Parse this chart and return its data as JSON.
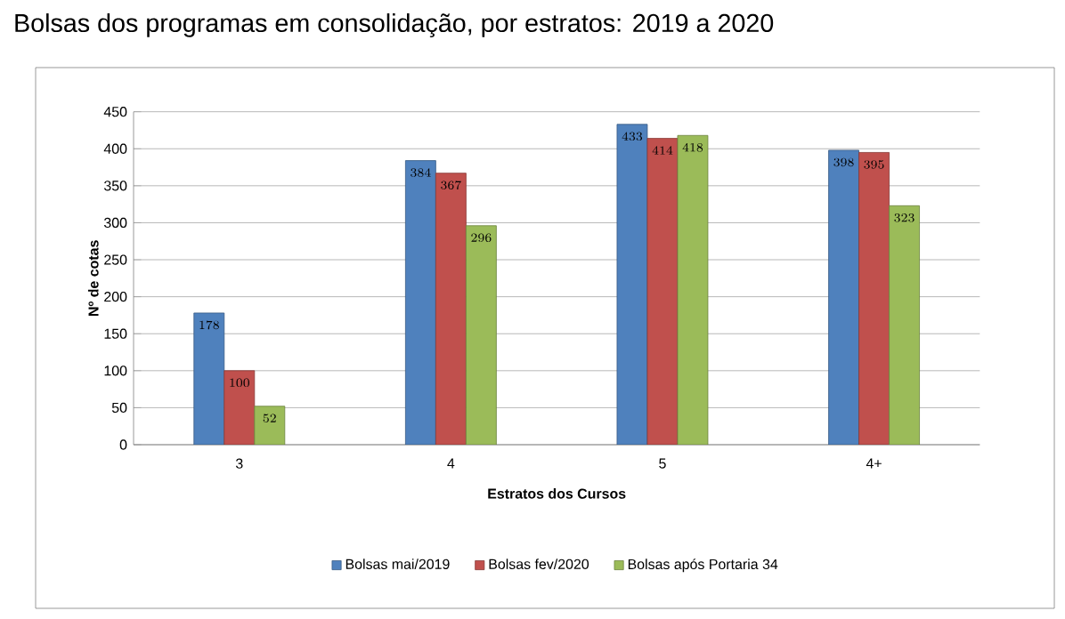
{
  "chart_data": {
    "type": "bar",
    "title": "Bolsas dos programas em consolidação, por estratos: 2019 a 2020",
    "xlabel": "Estratos dos Cursos",
    "ylabel": "Nº de cotas",
    "categories": [
      "3",
      "4",
      "5",
      "4+"
    ],
    "series": [
      {
        "name": "Bolsas mai/2019",
        "color": "#4f81bd",
        "values": [
          178,
          384,
          433,
          398
        ]
      },
      {
        "name": "Bolsas fev/2020",
        "color": "#c0504d",
        "values": [
          100,
          367,
          414,
          395
        ]
      },
      {
        "name": "Bolsas após Portaria 34",
        "color": "#9bbb59",
        "values": [
          52,
          296,
          418,
          323
        ]
      }
    ],
    "ylim": [
      0,
      450
    ],
    "yticks": [
      0,
      50,
      100,
      150,
      200,
      250,
      300,
      350,
      400,
      450
    ],
    "grid": "y",
    "legend": "bottom",
    "data_labels": true
  }
}
